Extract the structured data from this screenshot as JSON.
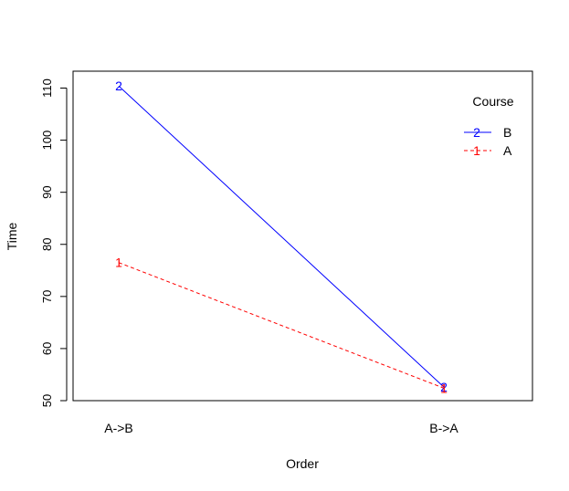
{
  "chart_data": {
    "type": "line",
    "title": "",
    "xlabel": "Order",
    "ylabel": "Time",
    "categories": [
      "A->B",
      "B->A"
    ],
    "ylim": [
      50,
      110
    ],
    "yticks": [
      50,
      60,
      70,
      80,
      90,
      100,
      110
    ],
    "legend": {
      "title": "Course",
      "placement": "top-right",
      "entries": [
        {
          "label": "B",
          "symbol": "2",
          "color": "#0000ff",
          "dash": "solid"
        },
        {
          "label": "A",
          "symbol": "1",
          "color": "#ff0000",
          "dash": "dashed"
        }
      ]
    },
    "series": [
      {
        "name": "B",
        "symbol": "2",
        "color": "#0000ff",
        "dash": "solid",
        "values": [
          110.4,
          52.6
        ]
      },
      {
        "name": "A",
        "symbol": "1",
        "color": "#ff0000",
        "dash": "dashed",
        "values": [
          76.5,
          52.4
        ]
      }
    ]
  }
}
